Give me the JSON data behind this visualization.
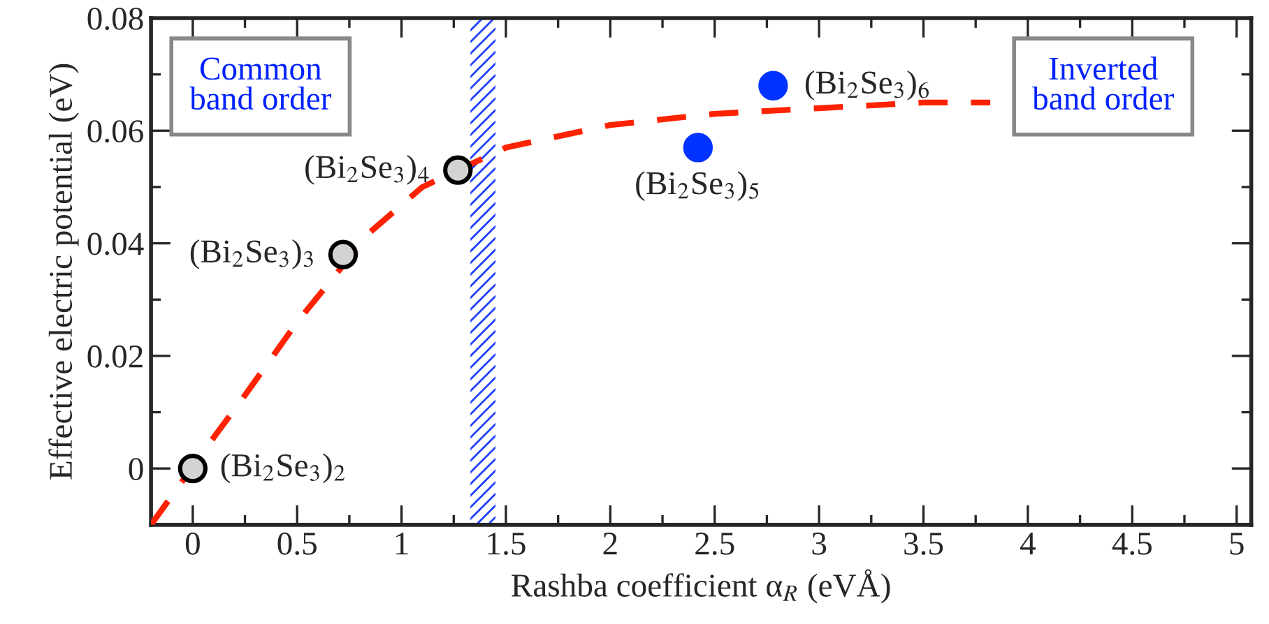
{
  "chart_data": {
    "type": "scatter",
    "xlabel": "Rashba coefficient α$_{R}$ (eVÅ)",
    "ylabel": "Effective electric potential (eV)",
    "xlim": [
      -0.2,
      5.07
    ],
    "ylim": [
      -0.01,
      0.08
    ],
    "xticks": [
      0,
      0.5,
      1,
      1.5,
      2,
      2.5,
      3,
      3.5,
      4,
      4.5,
      5
    ],
    "yticks": [
      0,
      0.02,
      0.04,
      0.06,
      0.08
    ],
    "series": [
      {
        "type": "line",
        "color": "#ff2200",
        "line_style": "dashed",
        "marker": "none",
        "x": [
          -0.2,
          0.12,
          0.25,
          0.5,
          0.85,
          1.1,
          1.5,
          2.0,
          2.5,
          3.0,
          3.5,
          3.82
        ],
        "values": [
          -0.01,
          0.0065,
          0.013,
          0.026,
          0.042,
          0.05,
          0.057,
          0.061,
          0.063,
          0.064,
          0.065,
          0.065
        ]
      },
      {
        "color": "#d3d3d3",
        "marker": "circle",
        "x": [
          0,
          0.72,
          1.27
        ],
        "values": [
          0,
          0.038,
          0.053
        ]
      },
      {
        "color": "#0033ff",
        "marker": "circle",
        "x": [
          2.42,
          2.78
        ],
        "values": [
          0.057,
          0.068
        ]
      }
    ],
    "bands": [
      {
        "axis": "x",
        "from": 1.33,
        "to": 1.45,
        "color": "#1f3fff"
      }
    ],
    "annotations": [
      {
        "text": "(Bi$_{2}$Se$_{3}$)$_{2}$",
        "x": 0,
        "y": 0
      },
      {
        "text": "(Bi$_{2}$Se$_{3}$)$_{3}$",
        "x": 0.72,
        "y": 0.038
      },
      {
        "text": "(Bi$_{2}$Se$_{3}$)$_{4}$",
        "x": 1.27,
        "y": 0.053
      },
      {
        "text": "(Bi$_{2}$Se$_{3}$)$_{5}$",
        "x": 2.42,
        "y": 0.057
      },
      {
        "text": "(Bi$_{2}$Se$_{3}$)$_{6}$",
        "x": 2.78,
        "y": 0.068
      },
      "Common\nband order",
      "Inverted\nband order"
    ],
    "grid": false,
    "legend": false
  }
}
